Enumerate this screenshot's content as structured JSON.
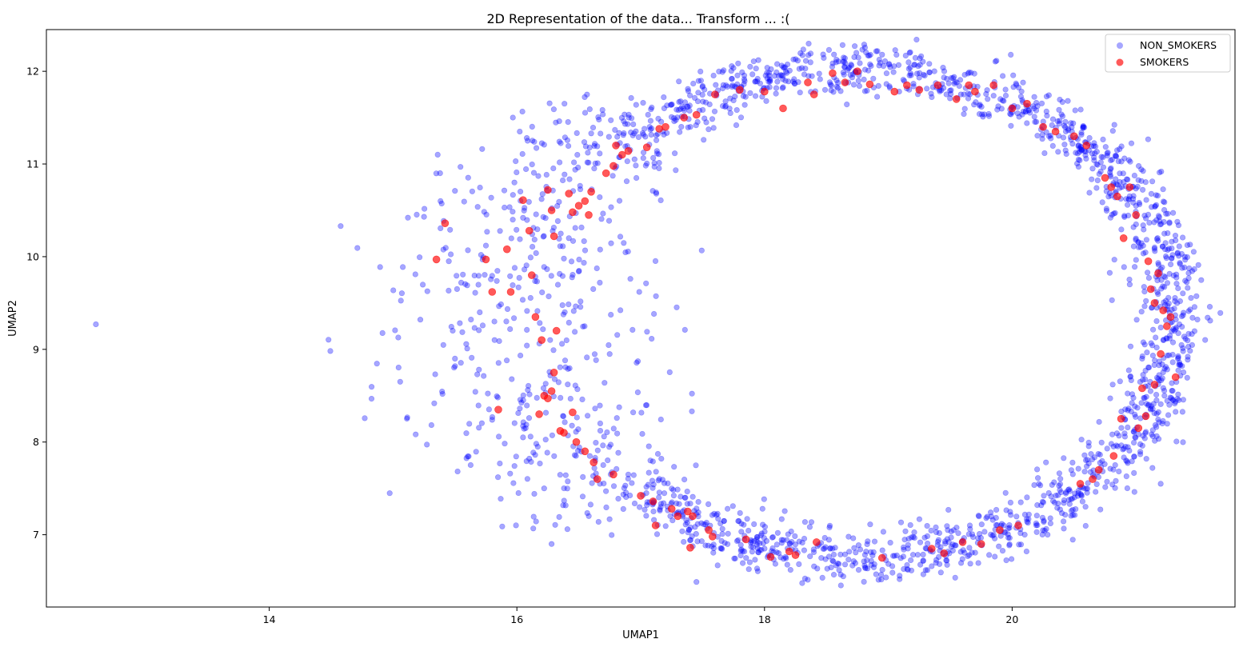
{
  "chart_data": {
    "type": "scatter",
    "title": "2D Representation of the data... Transform ... :(",
    "xlabel": "UMAP1",
    "ylabel": "UMAP2",
    "xlim": [
      12.2,
      21.8
    ],
    "ylim": [
      6.22,
      12.45
    ],
    "xticks": [
      14,
      16,
      18,
      20
    ],
    "yticks": [
      7,
      8,
      9,
      10,
      11,
      12
    ],
    "grid": false,
    "legend": "top-right",
    "series": [
      {
        "name": "NON_SMOKERS",
        "color": "#0000ff",
        "alpha": 0.35,
        "ring": {
          "center": [
            18.75,
            9.38
          ],
          "radius_x": 2.55,
          "radius_y": 2.62,
          "count": 2200
        },
        "points": [
          [
            12.6,
            9.27
          ],
          [
            15.25,
            10.43
          ],
          [
            15.38,
            10.9
          ],
          [
            15.5,
            10.71
          ],
          [
            15.22,
            9.32
          ],
          [
            15.45,
            9.95
          ],
          [
            15.55,
            9.72
          ],
          [
            15.5,
            8.9
          ],
          [
            15.68,
            8.73
          ],
          [
            15.8,
            8.24
          ],
          [
            15.9,
            10.53
          ],
          [
            16.05,
            8.05
          ],
          [
            16.1,
            7.82
          ],
          [
            16.08,
            11.28
          ],
          [
            16.28,
            6.9
          ],
          [
            17.45,
            6.49
          ],
          [
            18.95,
            12.18
          ],
          [
            17.95,
            12.12
          ],
          [
            21.2,
            7.55
          ],
          [
            20.45,
            11.68
          ],
          [
            15.98,
            10.8
          ],
          [
            16.05,
            10.42
          ],
          [
            15.7,
            9.4
          ],
          [
            16.6,
            11.33
          ],
          [
            16.42,
            10.2
          ],
          [
            16.38,
            9.98
          ],
          [
            15.82,
            9.1
          ],
          [
            16.22,
            7.5
          ],
          [
            16.95,
            11.05
          ],
          [
            17.05,
            7.32
          ],
          [
            20.65,
            10.95
          ],
          [
            21.05,
            8.9
          ],
          [
            20.95,
            9.7
          ]
        ]
      },
      {
        "name": "SMOKERS",
        "color": "#ff0000",
        "alpha": 0.65,
        "points": [
          [
            15.35,
            9.97
          ],
          [
            15.42,
            10.36
          ],
          [
            15.75,
            9.97
          ],
          [
            15.8,
            9.62
          ],
          [
            15.85,
            8.35
          ],
          [
            15.92,
            10.08
          ],
          [
            15.95,
            9.62
          ],
          [
            16.05,
            10.61
          ],
          [
            16.1,
            10.28
          ],
          [
            16.12,
            9.8
          ],
          [
            16.15,
            9.35
          ],
          [
            16.2,
            9.1
          ],
          [
            16.22,
            8.5
          ],
          [
            16.25,
            8.47
          ],
          [
            16.28,
            8.55
          ],
          [
            16.3,
            8.75
          ],
          [
            16.18,
            8.3
          ],
          [
            16.25,
            10.72
          ],
          [
            16.28,
            10.5
          ],
          [
            16.3,
            10.22
          ],
          [
            16.32,
            9.2
          ],
          [
            16.35,
            8.12
          ],
          [
            16.38,
            8.1
          ],
          [
            16.42,
            10.68
          ],
          [
            16.45,
            10.48
          ],
          [
            16.5,
            10.55
          ],
          [
            16.55,
            10.6
          ],
          [
            16.58,
            10.45
          ],
          [
            16.45,
            8.32
          ],
          [
            16.48,
            8.0
          ],
          [
            16.55,
            7.9
          ],
          [
            16.6,
            10.7
          ],
          [
            16.62,
            7.78
          ],
          [
            16.65,
            7.6
          ],
          [
            16.72,
            10.9
          ],
          [
            16.78,
            10.98
          ],
          [
            16.8,
            11.2
          ],
          [
            16.85,
            11.1
          ],
          [
            16.9,
            11.14
          ],
          [
            16.78,
            7.65
          ],
          [
            17.0,
            7.42
          ],
          [
            17.05,
            11.18
          ],
          [
            17.1,
            7.36
          ],
          [
            17.12,
            7.1
          ],
          [
            17.15,
            11.38
          ],
          [
            17.2,
            11.4
          ],
          [
            17.25,
            7.28
          ],
          [
            17.3,
            7.2
          ],
          [
            17.35,
            11.5
          ],
          [
            17.38,
            7.25
          ],
          [
            17.42,
            7.2
          ],
          [
            17.4,
            6.86
          ],
          [
            17.45,
            11.53
          ],
          [
            17.55,
            7.05
          ],
          [
            17.58,
            6.98
          ],
          [
            17.6,
            11.75
          ],
          [
            17.8,
            11.8
          ],
          [
            17.85,
            6.95
          ],
          [
            18.0,
            11.78
          ],
          [
            18.05,
            6.76
          ],
          [
            18.15,
            11.6
          ],
          [
            18.2,
            6.82
          ],
          [
            18.25,
            6.78
          ],
          [
            18.4,
            11.75
          ],
          [
            18.42,
            6.92
          ],
          [
            18.35,
            11.88
          ],
          [
            18.55,
            11.98
          ],
          [
            18.65,
            11.88
          ],
          [
            18.75,
            12.0
          ],
          [
            18.85,
            11.86
          ],
          [
            18.95,
            6.75
          ],
          [
            19.05,
            11.78
          ],
          [
            19.15,
            11.85
          ],
          [
            19.25,
            11.8
          ],
          [
            19.35,
            6.85
          ],
          [
            19.4,
            11.85
          ],
          [
            19.45,
            6.8
          ],
          [
            19.55,
            11.7
          ],
          [
            19.6,
            6.92
          ],
          [
            19.65,
            11.85
          ],
          [
            19.7,
            11.78
          ],
          [
            19.75,
            6.9
          ],
          [
            19.85,
            11.85
          ],
          [
            19.9,
            7.05
          ],
          [
            20.0,
            11.6
          ],
          [
            20.05,
            7.1
          ],
          [
            20.12,
            11.65
          ],
          [
            20.25,
            11.4
          ],
          [
            20.35,
            11.35
          ],
          [
            20.5,
            11.3
          ],
          [
            20.55,
            7.55
          ],
          [
            20.6,
            11.2
          ],
          [
            20.65,
            7.6
          ],
          [
            20.7,
            7.7
          ],
          [
            20.75,
            10.85
          ],
          [
            20.8,
            10.75
          ],
          [
            20.82,
            7.85
          ],
          [
            20.85,
            10.65
          ],
          [
            20.88,
            8.25
          ],
          [
            20.9,
            10.2
          ],
          [
            20.95,
            10.75
          ],
          [
            21.0,
            10.45
          ],
          [
            21.02,
            8.15
          ],
          [
            21.05,
            8.58
          ],
          [
            21.08,
            8.28
          ],
          [
            21.1,
            9.95
          ],
          [
            21.12,
            9.65
          ],
          [
            21.15,
            8.62
          ],
          [
            21.18,
            9.82
          ],
          [
            21.2,
            8.95
          ],
          [
            21.22,
            9.42
          ],
          [
            21.25,
            9.25
          ],
          [
            21.28,
            9.35
          ],
          [
            21.32,
            8.7
          ],
          [
            21.15,
            9.5
          ]
        ]
      }
    ]
  }
}
